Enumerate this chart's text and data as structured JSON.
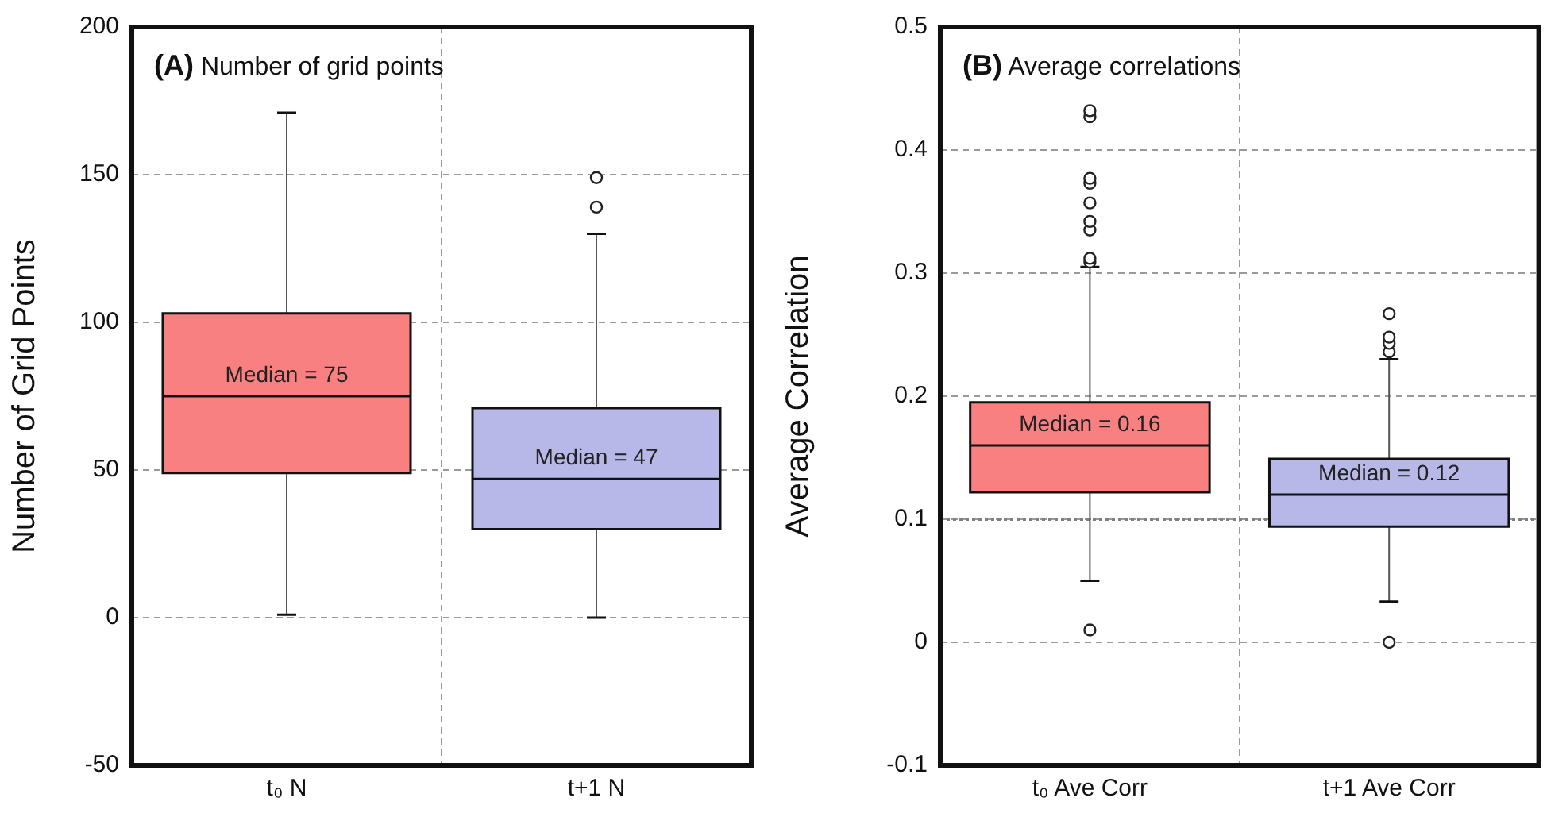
{
  "chart_data": [
    {
      "type": "box",
      "title": "(A) Number of grid points",
      "ylabel": "Number of Grid Points",
      "categories": [
        "t₀ N",
        "t+1 N"
      ],
      "colors": [
        "#f98080",
        "#b8b8e8"
      ],
      "boxes": [
        {
          "low": 1,
          "q1": 49,
          "median": 75,
          "q3": 103,
          "high": 171
        },
        {
          "low": 0,
          "q1": 30,
          "median": 47,
          "q3": 71,
          "high": 130,
          "outliers": [
            139,
            149
          ]
        }
      ],
      "ylim": [
        -50,
        200
      ],
      "yticks": [
        -50,
        0,
        50,
        100,
        150,
        200
      ],
      "grid": true,
      "annotations": [
        {
          "text": "Median = 75",
          "x": "t₀ N",
          "y": 75
        },
        {
          "text": "Median = 47",
          "x": "t+1 N",
          "y": 47
        }
      ]
    },
    {
      "type": "box",
      "title": "(B) Average correlations",
      "ylabel": "Average Correlation",
      "categories": [
        "t₀ Ave Corr",
        "t+1 Ave Corr"
      ],
      "colors": [
        "#f98080",
        "#b8b8e8"
      ],
      "boxes": [
        {
          "low": 0.05,
          "q1": 0.122,
          "median": 0.16,
          "q3": 0.195,
          "high": 0.305,
          "outliers": [
            0.01,
            0.309,
            0.312,
            0.335,
            0.342,
            0.357,
            0.373,
            0.377,
            0.427,
            0.432
          ]
        },
        {
          "low": 0.033,
          "q1": 0.094,
          "median": 0.12,
          "q3": 0.149,
          "high": 0.23,
          "outliers": [
            0.0,
            0.236,
            0.243,
            0.248,
            0.267
          ]
        }
      ],
      "ylim": [
        -0.1,
        0.5
      ],
      "yticks": [
        -0.1,
        0,
        0.1,
        0.2,
        0.3,
        0.4,
        0.5
      ],
      "grid": true,
      "ref_lines": [
        {
          "axis": "y",
          "value": 0.1,
          "color": "#808080",
          "line_style": "dotted"
        }
      ],
      "annotations": [
        {
          "text": "Median = 0.16",
          "x": "t₀ Ave Corr",
          "y": 0.16
        },
        {
          "text": "Median = 0.12",
          "x": "t+1 Ave Corr",
          "y": 0.12
        }
      ]
    }
  ]
}
